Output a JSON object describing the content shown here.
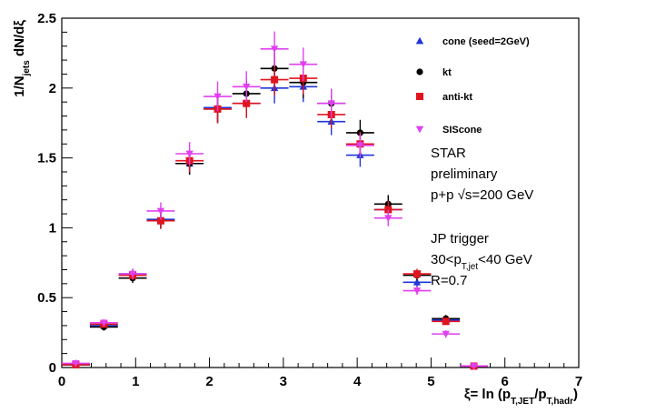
{
  "chart_data": {
    "type": "scatter",
    "title": "",
    "xlabel": "ξ= ln (p_{T,JET}/p_{T,hadr})",
    "ylabel": "1/N_{jets} dN/dξ",
    "xlim": [
      0,
      7
    ],
    "ylim": [
      0,
      2.5
    ],
    "grid": false,
    "legend_position": "top-right",
    "x_tick_labels": [
      "0",
      "1",
      "2",
      "3",
      "4",
      "5",
      "6",
      "7"
    ],
    "y_tick_labels": [
      "0",
      "0.5",
      "1",
      "1.5",
      "2",
      "2.5"
    ],
    "x_tick_values": [
      0,
      1,
      2,
      3,
      4,
      5,
      6,
      7
    ],
    "y_tick_values": [
      0,
      0.5,
      1,
      1.5,
      2,
      2.5
    ],
    "x_bin_halfwidth": 0.19,
    "series": [
      {
        "name": "cone (seed=2GeV)",
        "color": "#1f35d9",
        "marker": "triangle-up",
        "x": [
          0.19,
          0.57,
          0.96,
          1.34,
          1.73,
          2.11,
          2.5,
          2.88,
          3.27,
          3.65,
          4.04,
          4.42,
          4.81,
          5.2,
          5.58
        ],
        "y": [
          0.02,
          0.3,
          0.67,
          1.06,
          1.46,
          1.86,
          1.89,
          2.0,
          2.01,
          1.76,
          1.52,
          1.13,
          0.61,
          0.34,
          0.01
        ]
      },
      {
        "name": "kt",
        "color": "#000000",
        "marker": "circle",
        "x": [
          0.19,
          0.57,
          0.96,
          1.34,
          1.73,
          2.11,
          2.5,
          2.88,
          3.27,
          3.65,
          4.04,
          4.42,
          4.81,
          5.2,
          5.58
        ],
        "y": [
          0.02,
          0.29,
          0.64,
          1.05,
          1.46,
          1.85,
          1.96,
          2.14,
          2.04,
          1.89,
          1.68,
          1.17,
          0.66,
          0.35,
          0.01
        ]
      },
      {
        "name": "anti-kt",
        "color": "#e0141e",
        "marker": "square",
        "x": [
          0.19,
          0.57,
          0.96,
          1.34,
          1.73,
          2.11,
          2.5,
          2.88,
          3.27,
          3.65,
          4.04,
          4.42,
          4.81,
          5.2,
          5.58
        ],
        "y": [
          0.02,
          0.31,
          0.66,
          1.05,
          1.48,
          1.85,
          1.89,
          2.06,
          2.07,
          1.81,
          1.6,
          1.13,
          0.67,
          0.33,
          0.01
        ]
      },
      {
        "name": "SIScone",
        "color": "#e040f0",
        "marker": "triangle-down",
        "x": [
          0.19,
          0.57,
          0.96,
          1.34,
          1.73,
          2.11,
          2.5,
          2.88,
          3.27,
          3.65,
          4.04,
          4.42,
          4.81,
          5.2,
          5.58
        ],
        "y": [
          0.03,
          0.32,
          0.67,
          1.12,
          1.53,
          1.94,
          2.01,
          2.28,
          2.17,
          1.89,
          1.59,
          1.07,
          0.55,
          0.24,
          0.01
        ]
      }
    ],
    "annotations": [
      "STAR",
      "preliminary",
      "p+p √s=200 GeV",
      "JP trigger",
      "30<p_{T,jet}<40 GeV",
      "R=0.7"
    ]
  }
}
